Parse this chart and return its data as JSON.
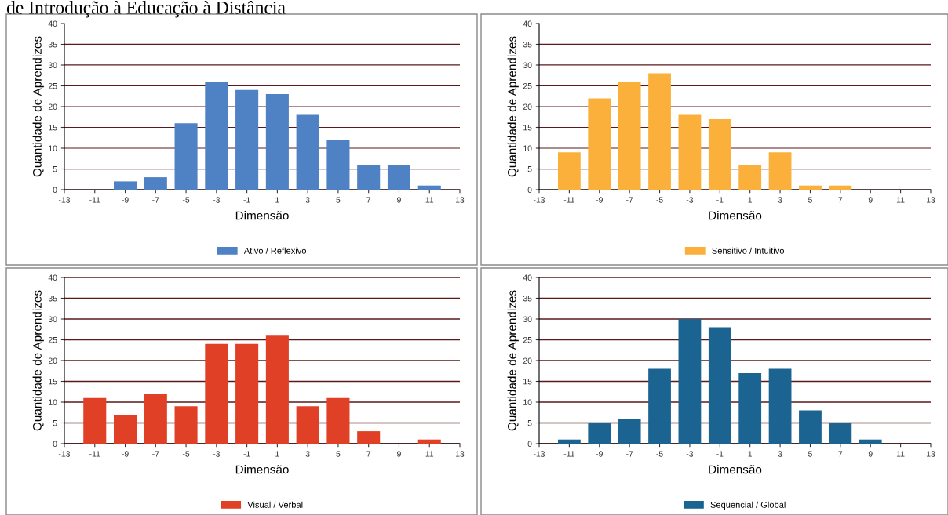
{
  "chart_data": [
    {
      "type": "bar",
      "xlabel": "Dimensão",
      "ylabel": "Quantidade de Aprendizes",
      "annotations": [
        "de Introdução à Educação à Distância"
      ],
      "x": [
        -11,
        -9,
        -7,
        -5,
        -3,
        -1,
        1,
        3,
        5,
        7,
        9,
        11
      ],
      "series": [
        {
          "name": "Ativo / Reflexivo",
          "color": "#4f81c5",
          "values": [
            0,
            2,
            3,
            16,
            26,
            24,
            23,
            18,
            12,
            6,
            6,
            1
          ]
        }
      ],
      "xlim": [
        -13,
        13
      ],
      "xticks": [
        -13,
        -11,
        -9,
        -7,
        -5,
        -3,
        -1,
        1,
        3,
        5,
        7,
        9,
        11,
        13
      ],
      "ylim": [
        0,
        40
      ],
      "yticks": [
        0,
        5,
        10,
        15,
        20,
        25,
        30,
        35,
        40
      ],
      "grid": "y",
      "legend": "bottom"
    },
    {
      "type": "bar",
      "xlabel": "Dimensão",
      "ylabel": "Quantidade de Aprendizes",
      "x": [
        -11,
        -9,
        -7,
        -5,
        -3,
        -1,
        1,
        3,
        5,
        7,
        9,
        11
      ],
      "series": [
        {
          "name": "Sensitivo / Intuitivo",
          "color": "#fbb03b",
          "values": [
            9,
            22,
            26,
            28,
            18,
            17,
            6,
            9,
            1,
            1,
            0,
            0
          ]
        }
      ],
      "xlim": [
        -13,
        13
      ],
      "xticks": [
        -13,
        -11,
        -9,
        -7,
        -5,
        -3,
        -1,
        1,
        3,
        5,
        7,
        9,
        11,
        13
      ],
      "ylim": [
        0,
        40
      ],
      "yticks": [
        0,
        5,
        10,
        15,
        20,
        25,
        30,
        35,
        40
      ],
      "grid": "y",
      "legend": "bottom"
    },
    {
      "type": "bar",
      "xlabel": "Dimensão",
      "ylabel": "Quantidade de Aprendizes",
      "x": [
        -11,
        -9,
        -7,
        -5,
        -3,
        -1,
        1,
        3,
        5,
        7,
        9,
        11
      ],
      "series": [
        {
          "name": "Visual / Verbal",
          "color": "#e04026",
          "values": [
            11,
            7,
            12,
            9,
            24,
            24,
            26,
            9,
            11,
            3,
            0,
            1
          ]
        }
      ],
      "xlim": [
        -13,
        13
      ],
      "xticks": [
        -13,
        -11,
        -9,
        -7,
        -5,
        -3,
        -1,
        1,
        3,
        5,
        7,
        9,
        11,
        13
      ],
      "ylim": [
        0,
        40
      ],
      "yticks": [
        0,
        5,
        10,
        15,
        20,
        25,
        30,
        35,
        40
      ],
      "grid": "y",
      "legend": "bottom"
    },
    {
      "type": "bar",
      "xlabel": "Dimensão",
      "ylabel": "Quantidade de Aprendizes",
      "x": [
        -11,
        -9,
        -7,
        -5,
        -3,
        -1,
        1,
        3,
        5,
        7,
        9,
        11
      ],
      "series": [
        {
          "name": "Sequencial / Global",
          "color": "#1b6391",
          "values": [
            1,
            5,
            6,
            18,
            30,
            28,
            17,
            18,
            8,
            5,
            1,
            0
          ]
        }
      ],
      "xlim": [
        -13,
        13
      ],
      "xticks": [
        -13,
        -11,
        -9,
        -7,
        -5,
        -3,
        -1,
        1,
        3,
        5,
        7,
        9,
        11,
        13
      ],
      "ylim": [
        0,
        40
      ],
      "yticks": [
        0,
        5,
        10,
        15,
        20,
        25,
        30,
        35,
        40
      ],
      "grid": "y",
      "legend": "bottom"
    }
  ]
}
